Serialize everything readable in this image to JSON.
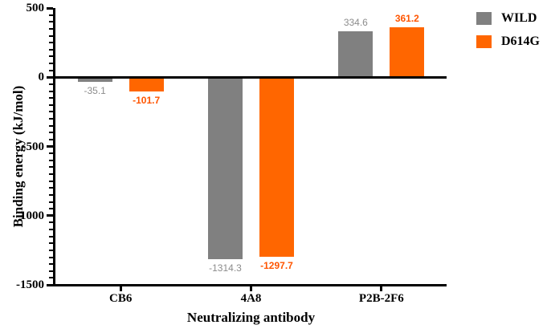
{
  "chart_data": {
    "type": "bar",
    "title": "",
    "xlabel": "Neutralizing antibody",
    "ylabel": "Binding energy (kJ/mol)",
    "categories": [
      "CB6",
      "4A8",
      "P2B-2F6"
    ],
    "series": [
      {
        "name": "WILD",
        "color": "#808080",
        "label_color": "#8C8C8C",
        "values": [
          -35.1,
          -1314.3,
          334.6
        ],
        "value_labels": [
          "-35.1",
          "-1314.3",
          "334.6"
        ]
      },
      {
        "name": "D614G",
        "color": "#FF6600",
        "label_color": "#FF5500",
        "values": [
          -101.7,
          -1297.7,
          361.2
        ],
        "value_labels": [
          "-101.7",
          "-1297.7",
          "361.2"
        ]
      }
    ],
    "ylim": [
      -1500,
      500
    ],
    "yticks": [
      500,
      0,
      -500,
      -1000,
      -1500
    ],
    "ytick_labels": [
      "500",
      "0",
      "-500",
      "-1000",
      "-1500"
    ],
    "ytick_minor_step": 50,
    "grid": false,
    "legend_position": "top-right",
    "axis_color": "#000000",
    "background_color": "#FFFFFF"
  }
}
